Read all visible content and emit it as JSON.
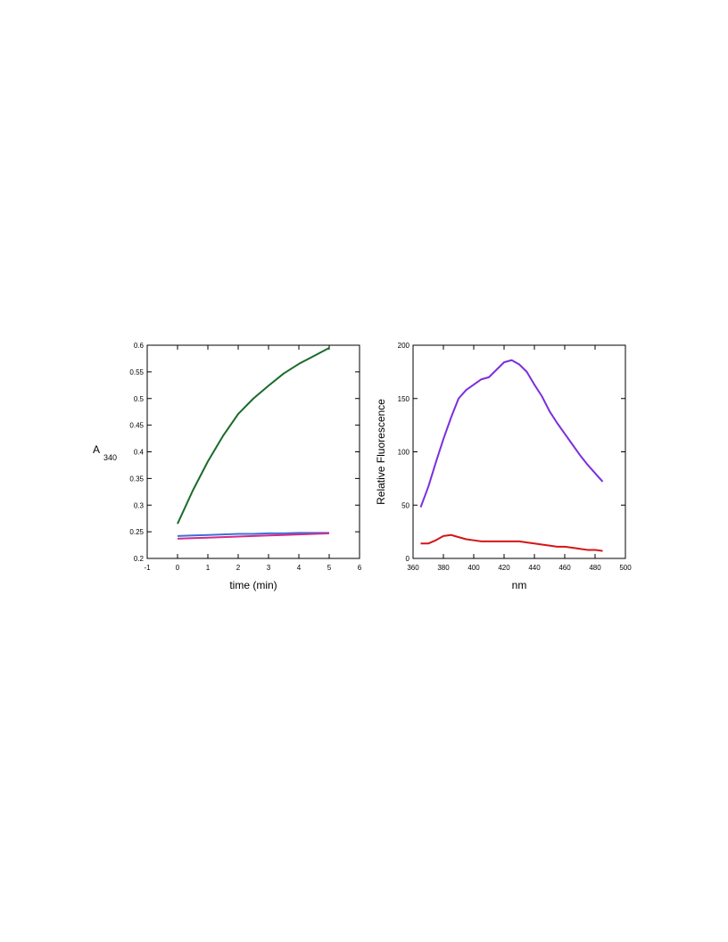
{
  "chart_data": [
    {
      "type": "line",
      "xlabel": "time (min)",
      "ylabel": "A",
      "ylabel_subscript": "340",
      "xlim": [
        -1,
        6
      ],
      "ylim": [
        0.2,
        0.6
      ],
      "xticks": [
        -1,
        0,
        1,
        2,
        3,
        4,
        5,
        6
      ],
      "yticks": [
        0.2,
        0.25,
        0.3,
        0.35,
        0.4,
        0.45,
        0.5,
        0.55,
        0.6
      ],
      "x": [
        0,
        0.5,
        1,
        1.5,
        2,
        2.5,
        3,
        3.5,
        4,
        4.5,
        5
      ],
      "series": [
        {
          "color": "#1a6b2a",
          "values": [
            0.265,
            0.327,
            0.382,
            0.43,
            0.471,
            0.5,
            0.524,
            0.547,
            0.565,
            0.58,
            0.595
          ]
        },
        {
          "color": "#3f6fd6",
          "values": [
            0.242,
            0.243,
            0.244,
            0.245,
            0.246,
            0.246,
            0.247,
            0.247,
            0.248,
            0.248,
            0.248
          ]
        },
        {
          "color": "#d12c8c",
          "values": [
            0.237,
            0.238,
            0.239,
            0.24,
            0.241,
            0.242,
            0.243,
            0.244,
            0.245,
            0.246,
            0.247
          ]
        }
      ]
    },
    {
      "type": "line",
      "xlabel": "nm",
      "ylabel": "Relative Fluorescence",
      "xlim": [
        360,
        500
      ],
      "ylim": [
        0,
        200
      ],
      "xticks": [
        360,
        380,
        400,
        420,
        440,
        460,
        480,
        500
      ],
      "yticks": [
        0,
        50,
        100,
        150,
        200
      ],
      "x": [
        365,
        370,
        375,
        380,
        385,
        390,
        395,
        400,
        405,
        410,
        415,
        420,
        425,
        430,
        435,
        440,
        445,
        450,
        455,
        460,
        465,
        470,
        475,
        480,
        485
      ],
      "series": [
        {
          "color": "#7b2fdc",
          "values": [
            48,
            67,
            90,
            112,
            132,
            150,
            158,
            163,
            168,
            170,
            177,
            184,
            186,
            182,
            175,
            163,
            152,
            138,
            127,
            117,
            107,
            97,
            88,
            80,
            72
          ]
        },
        {
          "color": "#d41515",
          "values": [
            14,
            14,
            17,
            21,
            22,
            20,
            18,
            17,
            16,
            16,
            16,
            16,
            16,
            16,
            15,
            14,
            13,
            12,
            11,
            11,
            10,
            9,
            8,
            8,
            7
          ]
        }
      ]
    }
  ]
}
